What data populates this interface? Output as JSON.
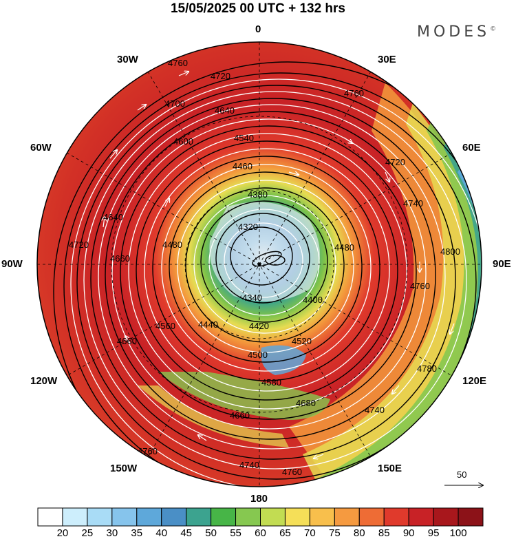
{
  "header": {
    "title": "15/05/2025  00 UTC  + 132 hrs",
    "brand": "MODES",
    "brand_mark": "©"
  },
  "longitude_labels": {
    "top": "0",
    "top_left": "30W",
    "top_right": "30E",
    "upper_left": "60W",
    "upper_right": "60E",
    "left": "90W",
    "right": "90E",
    "lower_left": "120W",
    "lower_right": "120E",
    "bottom_left": "150W",
    "bottom_right": "150E",
    "bottom": "180"
  },
  "contours": {
    "labels": [
      "4760",
      "4720",
      "4700",
      "4640",
      "4600",
      "4540",
      "4460",
      "4380",
      "4320",
      "4340",
      "4400",
      "4420",
      "4440",
      "4500",
      "4520",
      "4580",
      "4660",
      "4680",
      "4740",
      "4780",
      "4800",
      "4480",
      "4560"
    ]
  },
  "scale_vector": {
    "label": "50"
  },
  "colorbar": {
    "labels": [
      "20",
      "25",
      "30",
      "35",
      "40",
      "45",
      "50",
      "55",
      "60",
      "65",
      "70",
      "75",
      "80",
      "85",
      "90",
      "95",
      "100"
    ],
    "colors": [
      "#ffffff",
      "#cdeefc",
      "#a9dcf6",
      "#86c4ec",
      "#5ea8da",
      "#4a8fc6",
      "#3ca38f",
      "#47b547",
      "#86c850",
      "#c2dc52",
      "#f5df58",
      "#f8bf4c",
      "#f59a40",
      "#ee6c35",
      "#e03a2c",
      "#c82226",
      "#a8171c",
      "#8c1218"
    ]
  }
}
